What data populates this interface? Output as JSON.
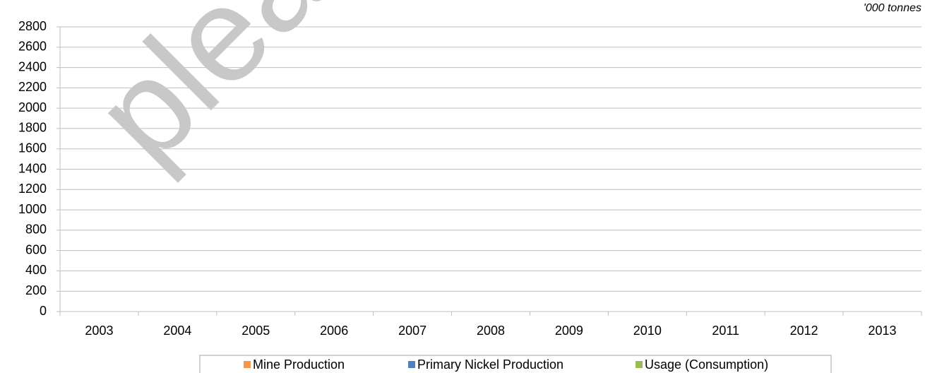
{
  "chart_data": {
    "type": "bar",
    "unit_label": "'000 tonnes",
    "watermark": "plea",
    "categories": [
      "2003",
      "2004",
      "2005",
      "2006",
      "2007",
      "2008",
      "2009",
      "2010",
      "2011",
      "2012",
      "2013"
    ],
    "series": [
      {
        "name": "Mine Production",
        "color": "#f79646",
        "values": [
          null,
          null,
          null,
          null,
          null,
          null,
          null,
          null,
          null,
          null,
          null
        ]
      },
      {
        "name": "Primary Nickel Production",
        "color": "#4f81bd",
        "values": [
          null,
          null,
          null,
          null,
          null,
          null,
          null,
          null,
          null,
          null,
          null
        ]
      },
      {
        "name": "Usage (Consumption)",
        "color": "#9bbb59",
        "values": [
          null,
          null,
          null,
          null,
          null,
          null,
          null,
          null,
          null,
          null,
          null
        ]
      }
    ],
    "ylim": [
      0,
      2800
    ],
    "yticks": [
      0,
      200,
      400,
      600,
      800,
      1000,
      1200,
      1400,
      1600,
      1800,
      2000,
      2200,
      2400,
      2600,
      2800
    ],
    "grid": true,
    "legend": "bottom"
  }
}
